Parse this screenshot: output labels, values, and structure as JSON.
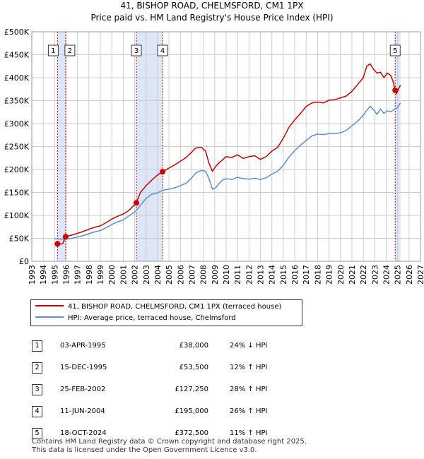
{
  "chart_data": {
    "type": "line",
    "title": "41, BISHOP ROAD, CHELMSFORD, CM1 1PX",
    "subtitle": "Price paid vs. HM Land Registry's House Price Index (HPI)",
    "xlim": [
      1993,
      2027
    ],
    "ylim": [
      0,
      500000
    ],
    "x_ticks": [
      1993,
      1994,
      1995,
      1996,
      1997,
      1998,
      1999,
      2000,
      2001,
      2002,
      2003,
      2004,
      2005,
      2006,
      2007,
      2008,
      2009,
      2010,
      2011,
      2012,
      2013,
      2014,
      2015,
      2016,
      2017,
      2018,
      2019,
      2020,
      2021,
      2022,
      2023,
      2024,
      2025,
      2026,
      2027
    ],
    "y_ticks": [
      0,
      50000,
      100000,
      150000,
      200000,
      250000,
      300000,
      350000,
      400000,
      450000,
      500000
    ],
    "y_tick_labels": [
      "£0",
      "£50K",
      "£100K",
      "£150K",
      "£200K",
      "£250K",
      "£300K",
      "£350K",
      "£400K",
      "£450K",
      "£500K"
    ],
    "shaded_periods": [
      {
        "from": 1995.25,
        "to": 1995.96
      },
      {
        "from": 2002.15,
        "to": 2004.44
      },
      {
        "from": 2024.79,
        "to": 2025.25
      }
    ],
    "series": [
      {
        "name": "41, BISHOP ROAD, CHELMSFORD, CM1 1PX (terraced house)",
        "color": "#cc0000",
        "x": [
          1995.25,
          1995.3,
          1995.5,
          1995.7,
          1995.96,
          1996.0,
          1996.5,
          1997.0,
          1997.5,
          1998.0,
          1998.5,
          1999.0,
          1999.5,
          2000.0,
          2000.5,
          2001.0,
          2001.5,
          2002.15,
          2002.5,
          2003.0,
          2003.5,
          2004.0,
          2004.44,
          2005.0,
          2005.5,
          2006.0,
          2006.5,
          2007.0,
          2007.3,
          2007.6,
          2007.9,
          2008.2,
          2008.5,
          2008.8,
          2009.1,
          2009.4,
          2009.7,
          2010.0,
          2010.5,
          2011.0,
          2011.5,
          2012.0,
          2012.5,
          2013.0,
          2013.5,
          2014.0,
          2014.5,
          2015.0,
          2015.5,
          2016.0,
          2016.5,
          2017.0,
          2017.5,
          2018.0,
          2018.5,
          2019.0,
          2019.5,
          2020.0,
          2020.5,
          2021.0,
          2021.5,
          2022.0,
          2022.3,
          2022.6,
          2022.9,
          2023.2,
          2023.5,
          2023.8,
          2024.1,
          2024.4,
          2024.6,
          2024.79,
          2024.9,
          2025.1,
          2025.25
        ],
        "values": [
          38000,
          37000,
          37500,
          38000,
          53500,
          54000,
          57000,
          61000,
          65000,
          70000,
          74000,
          77000,
          84000,
          92000,
          98000,
          103000,
          111000,
          127250,
          150000,
          165000,
          177000,
          188000,
          195000,
          203000,
          210000,
          218000,
          226000,
          238000,
          246000,
          248000,
          247000,
          240000,
          214000,
          196000,
          207000,
          215000,
          221000,
          228000,
          226000,
          232000,
          224000,
          228000,
          230000,
          222000,
          228000,
          240000,
          248000,
          268000,
          292000,
          308000,
          322000,
          337000,
          345000,
          347000,
          345000,
          351000,
          352000,
          356000,
          360000,
          370000,
          385000,
          400000,
          425000,
          430000,
          418000,
          410000,
          412000,
          400000,
          410000,
          405000,
          392000,
          372500,
          365000,
          376000,
          384000
        ]
      },
      {
        "name": "HPI: Average price, terraced house, Chelmsford",
        "color": "#5b8fd0",
        "x": [
          1995.0,
          1995.5,
          1996.0,
          1996.5,
          1997.0,
          1997.5,
          1998.0,
          1998.5,
          1999.0,
          1999.5,
          2000.0,
          2000.5,
          2001.0,
          2001.5,
          2002.0,
          2002.5,
          2003.0,
          2003.5,
          2004.0,
          2004.5,
          2005.0,
          2005.5,
          2006.0,
          2006.5,
          2007.0,
          2007.3,
          2007.6,
          2007.9,
          2008.2,
          2008.5,
          2008.8,
          2009.1,
          2009.4,
          2009.7,
          2010.0,
          2010.5,
          2011.0,
          2011.5,
          2012.0,
          2012.5,
          2013.0,
          2013.5,
          2014.0,
          2014.5,
          2015.0,
          2015.5,
          2016.0,
          2016.5,
          2017.0,
          2017.5,
          2018.0,
          2018.5,
          2019.0,
          2019.5,
          2020.0,
          2020.5,
          2021.0,
          2021.5,
          2022.0,
          2022.3,
          2022.6,
          2022.9,
          2023.2,
          2023.5,
          2023.8,
          2024.1,
          2024.4,
          2024.7,
          2025.0,
          2025.25
        ],
        "values": [
          49000,
          48500,
          48000,
          50000,
          53000,
          56000,
          60000,
          64000,
          67000,
          73000,
          80000,
          86000,
          90000,
          99000,
          107000,
          122000,
          137000,
          146000,
          149000,
          155000,
          157000,
          160000,
          165000,
          170000,
          182000,
          191000,
          196000,
          198000,
          196000,
          180000,
          157000,
          160000,
          170000,
          177000,
          180000,
          178000,
          183000,
          180000,
          179000,
          181000,
          178000,
          182000,
          190000,
          196000,
          209000,
          227000,
          241000,
          253000,
          263000,
          273000,
          277000,
          276000,
          278000,
          278000,
          280000,
          285000,
          295000,
          305000,
          318000,
          329000,
          338000,
          330000,
          320000,
          332000,
          322000,
          328000,
          326000,
          330000,
          335000,
          345000
        ]
      }
    ],
    "sales": [
      {
        "num": "1",
        "x": 1995.25,
        "value": 38000
      },
      {
        "num": "2",
        "x": 1995.96,
        "value": 53500
      },
      {
        "num": "3",
        "x": 2002.15,
        "value": 127250
      },
      {
        "num": "4",
        "x": 2004.44,
        "value": 195000
      },
      {
        "num": "5",
        "x": 2024.79,
        "value": 372500
      }
    ]
  },
  "legend": {
    "series1_label": "41, BISHOP ROAD, CHELMSFORD, CM1 1PX (terraced house)",
    "series2_label": "HPI: Average price, terraced house, Chelmsford"
  },
  "transactions": [
    {
      "num": "1",
      "date": "03-APR-1995",
      "price": "£38,000",
      "hpi": "24% ↓ HPI"
    },
    {
      "num": "2",
      "date": "15-DEC-1995",
      "price": "£53,500",
      "hpi": "12% ↑ HPI"
    },
    {
      "num": "3",
      "date": "25-FEB-2002",
      "price": "£127,250",
      "hpi": "28% ↑ HPI"
    },
    {
      "num": "4",
      "date": "11-JUN-2004",
      "price": "£195,000",
      "hpi": "26% ↑ HPI"
    },
    {
      "num": "5",
      "date": "18-OCT-2024",
      "price": "£372,500",
      "hpi": "11% ↑ HPI"
    }
  ],
  "footer": {
    "line1": "Contains HM Land Registry data © Crown copyright and database right 2025.",
    "line2": "This data is licensed under the Open Government Licence v3.0."
  },
  "colors": {
    "property_line": "#cc0000",
    "hpi_line": "#5b8fd0",
    "shade": "#dde6f7",
    "grid": "#cccccc"
  }
}
